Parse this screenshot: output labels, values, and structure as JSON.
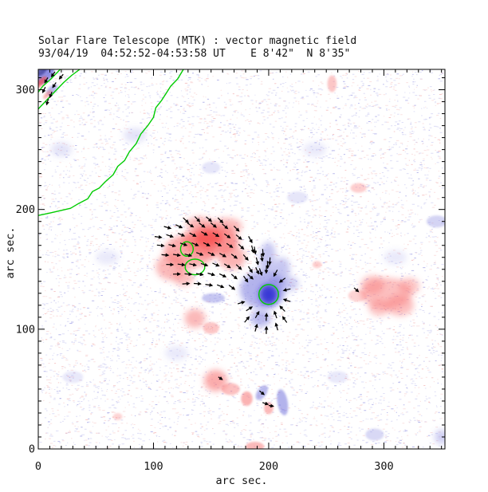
{
  "title": "Solar Flare Telescope (MTK) : vector magnetic field",
  "subtitle": "93/04/19  04:52:52-04:53:58 UT    E 8'42\"  N 8'35\"",
  "chart_data": {
    "type": "heatmap",
    "title": "Solar Flare Telescope (MTK) : vector magnetic field",
    "subtitle": "93/04/19  04:52:52-04:53:58 UT    E 8'42\"  N 8'35\"",
    "xlabel": "arc sec.",
    "ylabel": "arc sec.",
    "xlim": [
      0,
      353
    ],
    "ylim": [
      0,
      317
    ],
    "x_ticks": [
      0,
      100,
      200,
      300
    ],
    "y_ticks": [
      0,
      100,
      200,
      300
    ],
    "minor_tick_step": 10,
    "grid": false,
    "legend": false,
    "palette": {
      "red": "#f87474",
      "red2": "#f84e4e",
      "blue": "#7474dc",
      "darkblue": "#4848a0",
      "blueCore": "#3232d4",
      "contour": "#00cc00",
      "vector": "#000000",
      "axis": "#000000",
      "noiseBlue": "#9c9ce4",
      "noiseRed": "#f0a4a4"
    },
    "noise": {
      "seed": 1337,
      "blue_count": 3600,
      "blue_strong": 500,
      "red_count": 2400,
      "red_strong": 300
    },
    "blobs": [
      [
        150,
        174,
        24,
        13,
        "red",
        0.75,
        0
      ],
      [
        131,
        165,
        22,
        14,
        "red",
        0.6,
        0
      ],
      [
        163,
        186,
        14,
        7,
        "red",
        0.5,
        0
      ],
      [
        140,
        188,
        12,
        6,
        "red",
        0.5,
        0
      ],
      [
        115,
        152,
        13,
        11,
        "red",
        0.5,
        0
      ],
      [
        168,
        160,
        12,
        10,
        "red",
        0.55,
        0
      ],
      [
        126,
        143,
        9,
        7,
        "red",
        0.45,
        0
      ],
      [
        148,
        176,
        12,
        7,
        "red2",
        0.8,
        0
      ],
      [
        136,
        109,
        9,
        8,
        "red",
        0.5,
        0
      ],
      [
        150,
        101,
        7,
        5,
        "red",
        0.4,
        0
      ],
      [
        199,
        160,
        7,
        13,
        "blue",
        0.4,
        5
      ],
      [
        210,
        148,
        8,
        12,
        "blue",
        0.4,
        15
      ],
      [
        195,
        133,
        20,
        16,
        "blue",
        0.55,
        0
      ],
      [
        219,
        138,
        7,
        6,
        "blue",
        0.35,
        0
      ],
      [
        152,
        126,
        10,
        4,
        "blue",
        0.4,
        0
      ],
      [
        193,
        109,
        9,
        7,
        "blue",
        0.5,
        0
      ],
      [
        200,
        129,
        8,
        8.5,
        "blueCore",
        0.95,
        0
      ],
      [
        302,
        130,
        22,
        13,
        "red",
        0.45,
        0
      ],
      [
        290,
        137,
        10,
        8,
        "red",
        0.4,
        0
      ],
      [
        314,
        120,
        12,
        9,
        "red",
        0.45,
        0
      ],
      [
        322,
        136,
        9,
        7,
        "red",
        0.4,
        0
      ],
      [
        296,
        118,
        9,
        7,
        "red",
        0.4,
        0
      ],
      [
        277,
        128,
        8,
        5,
        "red",
        0.3,
        0
      ],
      [
        154,
        57,
        10,
        9,
        "red",
        0.6,
        0
      ],
      [
        167,
        50,
        8,
        5,
        "red",
        0.45,
        0
      ],
      [
        181,
        42,
        5,
        6,
        "red",
        0.55,
        0
      ],
      [
        194,
        47,
        4,
        7,
        "blue",
        0.5,
        35
      ],
      [
        212,
        39,
        4.5,
        11,
        "blue",
        0.55,
        -10
      ],
      [
        200,
        34,
        4,
        5,
        "red",
        0.5,
        0
      ],
      [
        188,
        2,
        8,
        4,
        "red",
        0.5,
        0
      ],
      [
        6,
        312,
        10,
        5,
        "blue",
        0.8,
        -45
      ],
      [
        3,
        316,
        6,
        3,
        "darkblue",
        0.85,
        -45
      ],
      [
        2,
        306,
        7,
        2.5,
        "red2",
        0.7,
        -45
      ],
      [
        12,
        300,
        6,
        3,
        "blue",
        0.5,
        -45
      ],
      [
        8,
        296,
        5,
        2,
        "red",
        0.5,
        -45
      ],
      [
        346,
        190,
        9,
        5,
        "blue",
        0.3,
        0
      ],
      [
        292,
        12,
        8,
        5,
        "blue",
        0.28,
        0
      ],
      [
        350,
        10,
        6,
        6,
        "blue",
        0.35,
        0
      ],
      [
        255,
        305,
        4,
        7,
        "red",
        0.4,
        0
      ],
      [
        278,
        218,
        7,
        4,
        "red",
        0.35,
        0
      ],
      [
        242,
        154,
        4,
        3,
        "red",
        0.35,
        0
      ],
      [
        84,
        262,
        10,
        6,
        "blue",
        0.2,
        0
      ],
      [
        20,
        250,
        9,
        6,
        "blue",
        0.2,
        0
      ],
      [
        60,
        160,
        10,
        6,
        "blue",
        0.15,
        0
      ],
      [
        240,
        250,
        10,
        6,
        "blue",
        0.15,
        0
      ],
      [
        120,
        80,
        10,
        6,
        "blue",
        0.15,
        0
      ],
      [
        260,
        60,
        9,
        5,
        "blue",
        0.15,
        0
      ],
      [
        310,
        160,
        10,
        6,
        "blue",
        0.15,
        0
      ],
      [
        69,
        27,
        4,
        3,
        "red",
        0.3,
        0
      ],
      [
        225,
        210,
        9,
        5,
        "blue",
        0.18,
        0
      ],
      [
        30,
        60,
        9,
        5,
        "blue",
        0.15,
        0
      ],
      [
        150,
        235,
        8,
        5,
        "blue",
        0.18,
        0
      ]
    ],
    "contours": {
      "color": "#00cc00",
      "closed": [
        [
          129,
          167,
          5.5,
          6
        ],
        [
          136,
          152,
          8.5,
          6.5
        ],
        [
          200,
          129,
          8.5,
          8.3
        ]
      ],
      "open": [
        [
          [
            126,
            317
          ],
          [
            121,
            309
          ],
          [
            115,
            303
          ],
          [
            111,
            297
          ],
          [
            107,
            291
          ],
          [
            102,
            285
          ],
          [
            100,
            277
          ],
          [
            95,
            270
          ],
          [
            89,
            263
          ],
          [
            85,
            255
          ],
          [
            79,
            248
          ],
          [
            75,
            241
          ],
          [
            69,
            236
          ],
          [
            65,
            229
          ],
          [
            58,
            223
          ],
          [
            53,
            218
          ],
          [
            47,
            215
          ],
          [
            43,
            209
          ],
          [
            35,
            205
          ],
          [
            28,
            201
          ],
          [
            19,
            199
          ],
          [
            10,
            197
          ],
          [
            0,
            195
          ]
        ],
        [
          [
            36,
            317
          ],
          [
            29,
            312
          ],
          [
            22,
            306
          ],
          [
            14,
            298
          ],
          [
            7,
            291
          ],
          [
            0,
            284
          ]
        ],
        [
          [
            19,
            317
          ],
          [
            11,
            309
          ],
          [
            4,
            303
          ],
          [
            0,
            298
          ]
        ]
      ]
    },
    "vectors": {
      "color": "#000000",
      "default_length": 6,
      "items": [
        [
          128,
          191,
          -42
        ],
        [
          138,
          192,
          -45
        ],
        [
          148,
          192,
          -40
        ],
        [
          158,
          191,
          -44
        ],
        [
          112,
          185,
          -15
        ],
        [
          122,
          186,
          -25
        ],
        [
          132,
          187,
          -32
        ],
        [
          142,
          187,
          -36
        ],
        [
          152,
          187,
          -38
        ],
        [
          162,
          186,
          -40
        ],
        [
          172,
          184,
          -44
        ],
        [
          104,
          177,
          -8
        ],
        [
          114,
          178,
          -18
        ],
        [
          124,
          179,
          -24
        ],
        [
          134,
          179,
          -27
        ],
        [
          144,
          180,
          -29
        ],
        [
          154,
          179,
          -31
        ],
        [
          164,
          178,
          -34
        ],
        [
          174,
          177,
          -39
        ],
        [
          184,
          175,
          -60
        ],
        [
          106,
          170,
          -6
        ],
        [
          116,
          170,
          -13
        ],
        [
          126,
          171,
          -19
        ],
        [
          136,
          171,
          -23
        ],
        [
          146,
          171,
          -26
        ],
        [
          156,
          171,
          -29
        ],
        [
          166,
          170,
          -33
        ],
        [
          176,
          169,
          -42
        ],
        [
          186,
          167,
          -75
        ],
        [
          195,
          164,
          -85
        ],
        [
          110,
          162,
          -4
        ],
        [
          120,
          162,
          -9
        ],
        [
          130,
          162,
          -15
        ],
        [
          140,
          163,
          -20
        ],
        [
          150,
          163,
          -24
        ],
        [
          160,
          162,
          -28
        ],
        [
          170,
          161,
          -36
        ],
        [
          180,
          160,
          -48
        ],
        [
          190,
          157,
          -75
        ],
        [
          199,
          154,
          -88
        ],
        [
          114,
          154,
          -2
        ],
        [
          124,
          154,
          -7
        ],
        [
          134,
          154,
          -12
        ],
        [
          144,
          154,
          -17
        ],
        [
          154,
          154,
          -23
        ],
        [
          164,
          153,
          -31
        ],
        [
          174,
          152,
          -43
        ],
        [
          184,
          150,
          -57
        ],
        [
          193,
          148,
          -70
        ],
        [
          120,
          146,
          1
        ],
        [
          130,
          146,
          -5
        ],
        [
          140,
          146,
          -10
        ],
        [
          150,
          146,
          -16
        ],
        [
          160,
          145,
          -25
        ],
        [
          170,
          144,
          -39
        ],
        [
          180,
          142,
          -54
        ],
        [
          128,
          138,
          4
        ],
        [
          138,
          138,
          -3
        ],
        [
          148,
          137,
          -9
        ],
        [
          158,
          136,
          -20
        ],
        [
          168,
          135,
          -36
        ],
        [
          176,
          122,
          17
        ],
        [
          183,
          117,
          32
        ],
        [
          190,
          112,
          60
        ],
        [
          198,
          110,
          87
        ],
        [
          206,
          112,
          110
        ],
        [
          212,
          117,
          135
        ],
        [
          216,
          124,
          162
        ],
        [
          216,
          133,
          193
        ],
        [
          212,
          141,
          215
        ],
        [
          206,
          147,
          240
        ],
        [
          198,
          150,
          268
        ],
        [
          190,
          149,
          -65
        ],
        [
          184,
          144,
          -42
        ],
        [
          181,
          108,
          49
        ],
        [
          189,
          101,
          74
        ],
        [
          198,
          99,
          88
        ],
        [
          207,
          102,
          106
        ],
        [
          214,
          108,
          126
        ],
        [
          194,
          160,
          -81
        ],
        [
          201,
          157,
          -94
        ],
        [
          188,
          166,
          -80
        ],
        [
          276,
          133,
          -40,
          5
        ],
        [
          158,
          59,
          -32,
          4
        ],
        [
          194,
          47,
          -38,
          5
        ],
        [
          197,
          38,
          -18,
          5
        ],
        [
          202,
          36,
          -8,
          4
        ],
        [
          13,
          313,
          233,
          5
        ],
        [
          20,
          311,
          228,
          5
        ],
        [
          7,
          308,
          238,
          5
        ],
        [
          14,
          304,
          235,
          5
        ],
        [
          5,
          300,
          243,
          5
        ],
        [
          11,
          296,
          248,
          5
        ],
        [
          8,
          290,
          253,
          5
        ]
      ]
    }
  }
}
